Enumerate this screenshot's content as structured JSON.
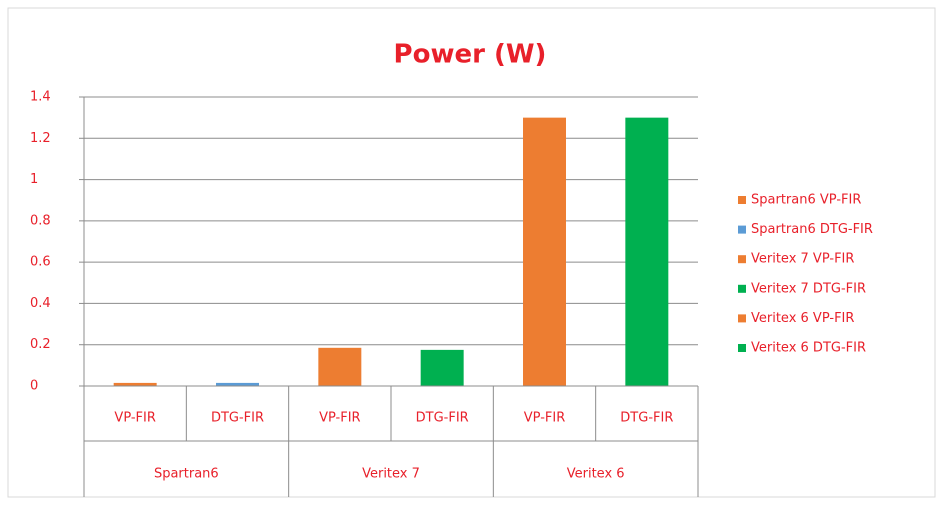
{
  "chart_data": {
    "type": "bar",
    "title": "Power (W)",
    "categories": [
      "VP-FIR",
      "DTG-FIR",
      "VP-FIR",
      "DTG-FIR",
      "VP-FIR",
      "DTG-FIR"
    ],
    "groups": [
      "Spartran6",
      "Veritex 7",
      "Veritex 6"
    ],
    "series": [
      {
        "name": "Spartran6 VP-FIR",
        "color": "#ed7d31",
        "values": [
          0.015,
          null,
          null,
          null,
          null,
          null
        ]
      },
      {
        "name": "Spartran6 DTG-FIR",
        "color": "#5b9bd5",
        "values": [
          null,
          0.015,
          null,
          null,
          null,
          null
        ]
      },
      {
        "name": "Veritex 7 VP-FIR",
        "color": "#ed7d31",
        "values": [
          null,
          null,
          0.185,
          null,
          null,
          null
        ]
      },
      {
        "name": "Veritex 7 DTG-FIR",
        "color": "#00b050",
        "values": [
          null,
          null,
          null,
          0.175,
          null,
          null
        ]
      },
      {
        "name": "Veritex 6 VP-FIR",
        "color": "#ed7d31",
        "values": [
          null,
          null,
          null,
          null,
          1.3,
          null
        ]
      },
      {
        "name": "Veritex 6 DTG-FIR",
        "color": "#00b050",
        "values": [
          null,
          null,
          null,
          null,
          null,
          1.3
        ]
      }
    ],
    "ylim": [
      0,
      1.4
    ],
    "yticks": [
      0,
      0.2,
      0.4,
      0.6,
      0.8,
      1,
      1.2,
      1.4
    ],
    "grid": true,
    "legend": "right"
  }
}
